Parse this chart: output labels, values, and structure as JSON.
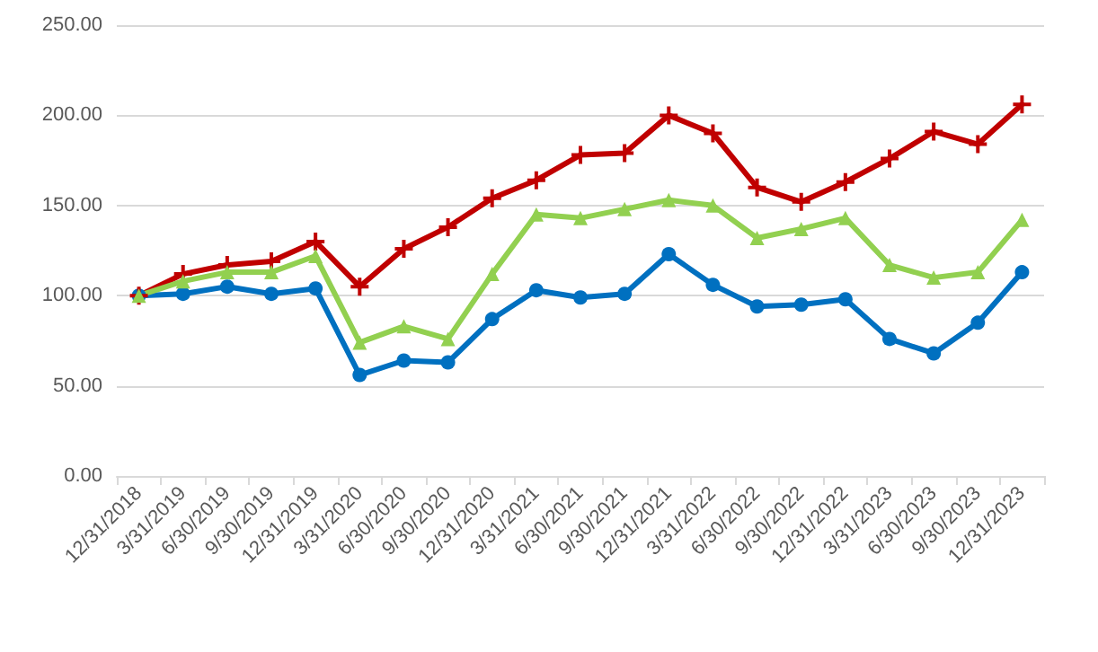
{
  "chart_data": {
    "type": "line",
    "categories": [
      "12/31/2018",
      "3/31/2019",
      "6/30/2019",
      "9/30/2019",
      "12/31/2019",
      "3/31/2020",
      "6/30/2020",
      "9/30/2020",
      "12/31/2020",
      "3/31/2021",
      "6/30/2021",
      "9/30/2021",
      "12/31/2021",
      "3/31/2022",
      "6/30/2022",
      "9/30/2022",
      "12/31/2022",
      "3/31/2023",
      "6/30/2023",
      "9/30/2023",
      "12/31/2023"
    ],
    "series": [
      {
        "color": "#0070c0",
        "marker": "circle",
        "values": [
          100,
          101,
          105,
          101,
          104,
          56,
          64,
          63,
          87,
          103,
          99,
          101,
          123,
          106,
          94,
          95,
          98,
          76,
          68,
          85,
          113
        ]
      },
      {
        "color": "#c00000",
        "marker": "cross",
        "values": [
          100,
          112,
          117,
          119,
          130,
          105,
          126,
          138,
          154,
          164,
          178,
          179,
          200,
          190,
          160,
          152,
          163,
          176,
          191,
          184,
          206
        ]
      },
      {
        "color": "#92d050",
        "marker": "triangle",
        "values": [
          100,
          108,
          113,
          113,
          122,
          74,
          83,
          76,
          112,
          145,
          143,
          148,
          153,
          150,
          132,
          137,
          143,
          117,
          110,
          113,
          142
        ]
      }
    ],
    "ylim": [
      0,
      250
    ],
    "yticks": [
      {
        "value": 0,
        "label": "0.00"
      },
      {
        "value": 50,
        "label": "50.00"
      },
      {
        "value": 100,
        "label": "100.00"
      },
      {
        "value": 150,
        "label": "150.00"
      },
      {
        "value": 200,
        "label": "200.00"
      },
      {
        "value": 250,
        "label": "250.00"
      }
    ],
    "grid": "y",
    "line_style": "solid"
  }
}
